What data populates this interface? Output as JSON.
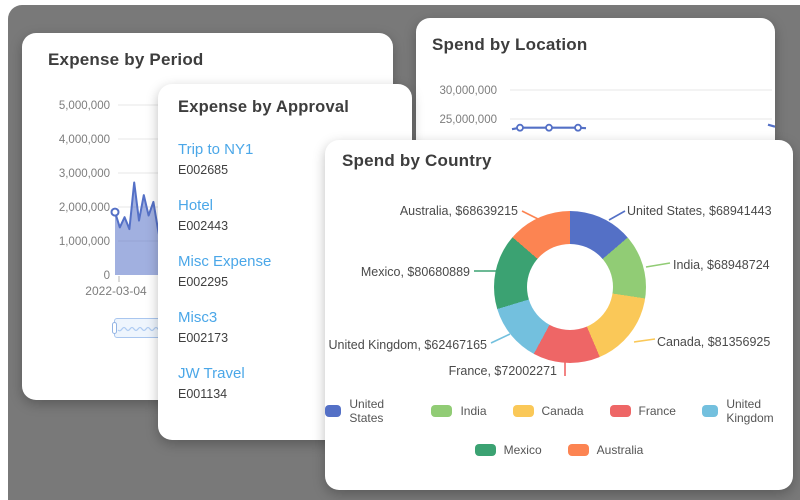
{
  "frame": {
    "backdrop_color": "#797979"
  },
  "cards": {
    "expense_by_period": {
      "title": "Expense by Period"
    },
    "expense_by_approval": {
      "title": "Expense by Approval",
      "link_color": "#4BA7E8",
      "items": [
        {
          "title": "Trip to NY1",
          "code": "E002685"
        },
        {
          "title": "Hotel",
          "code": "E002443"
        },
        {
          "title": "Misc Expense",
          "code": "E002295"
        },
        {
          "title": "Misc3",
          "code": "E002173"
        },
        {
          "title": "JW Travel",
          "code": "E001134"
        }
      ]
    },
    "spend_by_location": {
      "title": "Spend by Location"
    },
    "spend_by_country": {
      "title": "Spend by Country"
    }
  },
  "chart_data": [
    {
      "id": "expense_by_period",
      "type": "area",
      "title": "Expense by Period",
      "xlabel_first": "2022-03-04",
      "ylim": [
        0,
        5000000
      ],
      "yticks": [
        5000000,
        4000000,
        3000000,
        2000000,
        1000000,
        0
      ],
      "values": [
        1850000,
        1400000,
        1700000,
        1350000,
        2720000,
        1600000,
        2350000,
        1750000,
        2150000,
        1300000,
        620000,
        1450000,
        1700000,
        1750000
      ],
      "line_color": "#5470c6",
      "fill_color": "rgba(84,112,198,0.55)",
      "grid": true,
      "has_navigator": true
    },
    {
      "id": "spend_by_location",
      "type": "line",
      "title": "Spend by Location",
      "yticks": [
        30000000,
        25000000
      ],
      "visible_values": [
        23500000,
        23500000,
        23500000
      ],
      "line_color": "#5470c6",
      "grid": true
    },
    {
      "id": "spend_by_country",
      "type": "donut",
      "title": "Spend by Country",
      "slices": [
        {
          "name": "United States",
          "value": 68941443,
          "label": "United States, $68941443",
          "color": "#5470c6"
        },
        {
          "name": "India",
          "value": 68948724,
          "label": "India, $68948724",
          "color": "#91cc75"
        },
        {
          "name": "Canada",
          "value": 81356925,
          "label": "Canada, $81356925",
          "color": "#fac858"
        },
        {
          "name": "France",
          "value": 72002271,
          "label": "France, $72002271",
          "color": "#ee6666"
        },
        {
          "name": "United Kingdom",
          "value": 62467165,
          "label": "United Kingdom, $62467165",
          "color": "#73c0de"
        },
        {
          "name": "Mexico",
          "value": 80680889,
          "label": "Mexico, $80680889",
          "color": "#3ba272"
        },
        {
          "name": "Australia",
          "value": 68639215,
          "label": "Australia, $68639215",
          "color": "#fc8452"
        }
      ],
      "legend_rows": [
        [
          "United States",
          "India",
          "Canada",
          "France",
          "United Kingdom"
        ],
        [
          "Mexico",
          "Australia"
        ]
      ],
      "legend_position": "bottom"
    }
  ]
}
